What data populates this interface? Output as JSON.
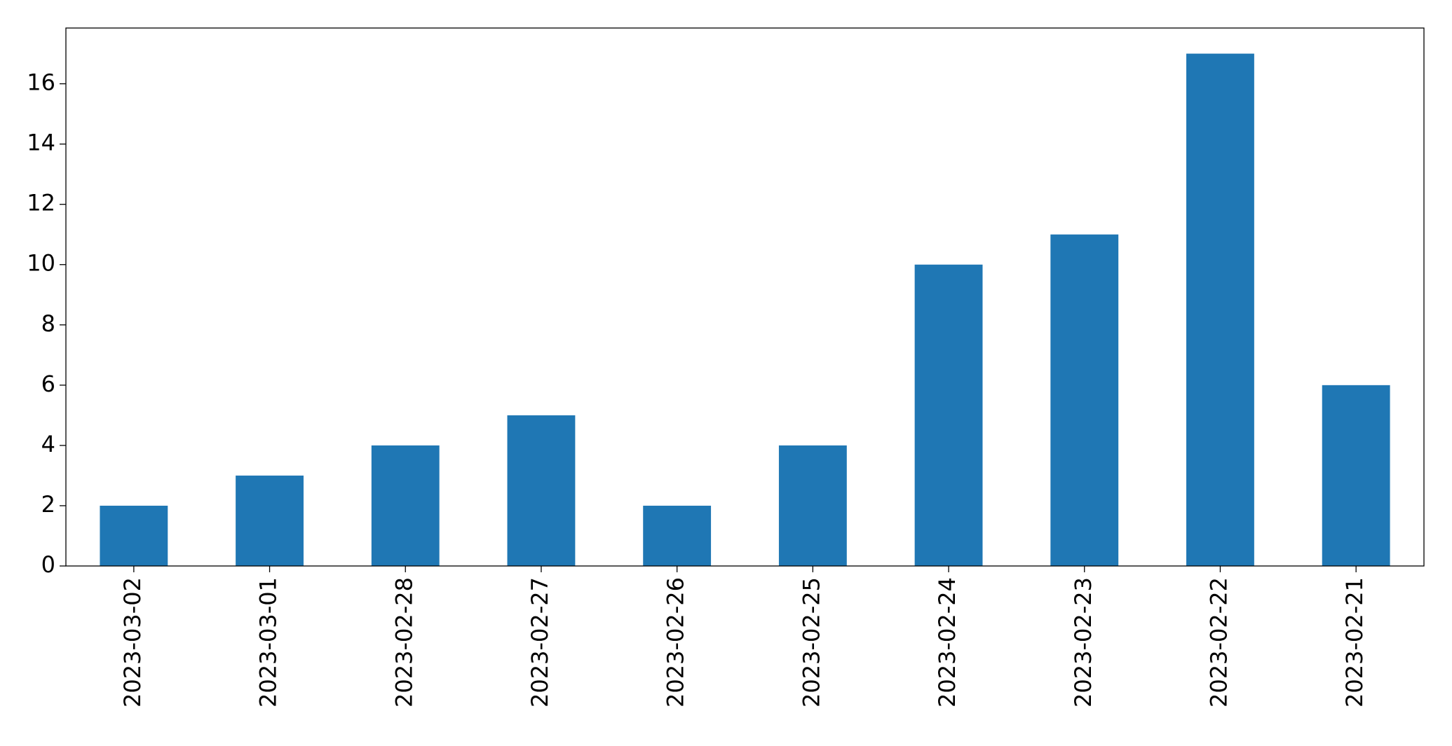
{
  "chart_data": {
    "type": "bar",
    "categories": [
      "2023-03-02",
      "2023-03-01",
      "2023-02-28",
      "2023-02-27",
      "2023-02-26",
      "2023-02-25",
      "2023-02-24",
      "2023-02-23",
      "2023-02-22",
      "2023-02-21"
    ],
    "values": [
      2,
      3,
      4,
      5,
      2,
      4,
      10,
      11,
      17,
      6
    ],
    "color": "#1f77b4",
    "ylim": [
      0,
      17.85
    ],
    "yticks": [
      0,
      2,
      4,
      6,
      8,
      10,
      12,
      14,
      16
    ],
    "grid": false
  }
}
